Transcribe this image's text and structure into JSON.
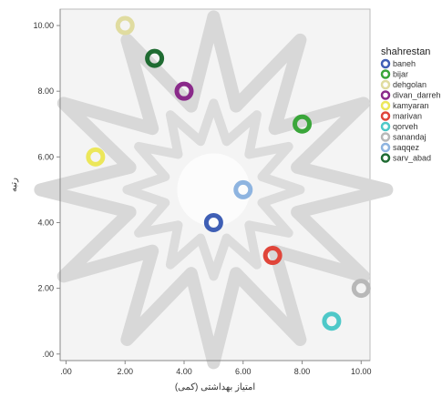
{
  "chart_data": {
    "type": "scatter",
    "xlabel": "امتیاز بهداشتی (کمی)",
    "ylabel": "رتبه",
    "xlim": [
      -0.2,
      10.3
    ],
    "ylim": [
      -0.2,
      10.5
    ],
    "x_ticks": [
      ".00",
      "2.00",
      "4.00",
      "6.00",
      "8.00",
      "10.00"
    ],
    "x_tick_values": [
      0,
      2,
      4,
      6,
      8,
      10
    ],
    "y_ticks": [
      ".00",
      "2.00",
      "4.00",
      "6.00",
      "8.00",
      "10.00"
    ],
    "y_tick_values": [
      0,
      2,
      4,
      6,
      8,
      10
    ],
    "grid": false,
    "legend": {
      "title": "shahrestan",
      "placement": "right"
    },
    "series": [
      {
        "name": "baneh",
        "color": "#3f5fb5",
        "x": 5,
        "y": 4
      },
      {
        "name": "bijar",
        "color": "#3aa63a",
        "x": 8,
        "y": 7
      },
      {
        "name": "dehgolan",
        "color": "#e0dca0",
        "x": 2,
        "y": 10
      },
      {
        "name": "divan_darreh",
        "color": "#8a2a8a",
        "x": 4,
        "y": 8
      },
      {
        "name": "kamyaran",
        "color": "#ece75a",
        "x": 1,
        "y": 6
      },
      {
        "name": "marivan",
        "color": "#e0453a",
        "x": 7,
        "y": 3
      },
      {
        "name": "qorveh",
        "color": "#4ec8c8",
        "x": 9,
        "y": 1
      },
      {
        "name": "sanandaj",
        "color": "#b8b8b8",
        "x": 10,
        "y": 2
      },
      {
        "name": "saqqez",
        "color": "#8eb4e0",
        "x": 6,
        "y": 5
      },
      {
        "name": "sarv_abad",
        "color": "#1f6b32",
        "x": 3,
        "y": 9
      }
    ]
  }
}
